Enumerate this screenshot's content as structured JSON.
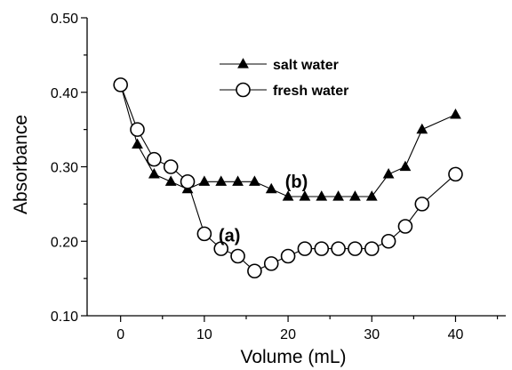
{
  "chart_data": {
    "type": "line",
    "xlabel": "Volume (mL)",
    "ylabel": "Absorbance",
    "xlim": [
      -4,
      46
    ],
    "ylim": [
      0.1,
      0.5
    ],
    "x_ticks": [
      "0",
      "10",
      "20",
      "30",
      "40"
    ],
    "y_ticks": [
      "0.10",
      "0.20",
      "0.30",
      "0.40",
      "0.50"
    ],
    "x_tick_values": [
      0,
      10,
      20,
      30,
      40
    ],
    "y_tick_values": [
      0.1,
      0.2,
      0.3,
      0.4,
      0.5
    ],
    "legend_placement": "top-center",
    "grid": false,
    "series": [
      {
        "name": "salt water",
        "marker": "triangle-filled",
        "color": "#000000",
        "x": [
          0,
          2,
          4,
          6,
          8,
          10,
          12,
          14,
          16,
          18,
          20,
          22,
          24,
          26,
          28,
          30,
          32,
          34,
          36,
          40
        ],
        "y": [
          0.41,
          0.33,
          0.29,
          0.28,
          0.27,
          0.28,
          0.28,
          0.28,
          0.28,
          0.27,
          0.26,
          0.26,
          0.26,
          0.26,
          0.26,
          0.26,
          0.29,
          0.3,
          0.35,
          0.37
        ]
      },
      {
        "name": "fresh water",
        "marker": "circle-open",
        "color": "#000000",
        "x": [
          0,
          2,
          4,
          6,
          8,
          10,
          12,
          14,
          16,
          18,
          20,
          22,
          24,
          26,
          28,
          30,
          32,
          34,
          36,
          40
        ],
        "y": [
          0.41,
          0.35,
          0.31,
          0.3,
          0.28,
          0.21,
          0.19,
          0.18,
          0.16,
          0.17,
          0.18,
          0.19,
          0.19,
          0.19,
          0.19,
          0.19,
          0.2,
          0.22,
          0.25,
          0.29
        ]
      }
    ],
    "annotations": [
      {
        "text": "(b)",
        "x": 21.0,
        "y": 0.272
      },
      {
        "text": "(a)",
        "x": 13.0,
        "y": 0.2
      }
    ]
  }
}
